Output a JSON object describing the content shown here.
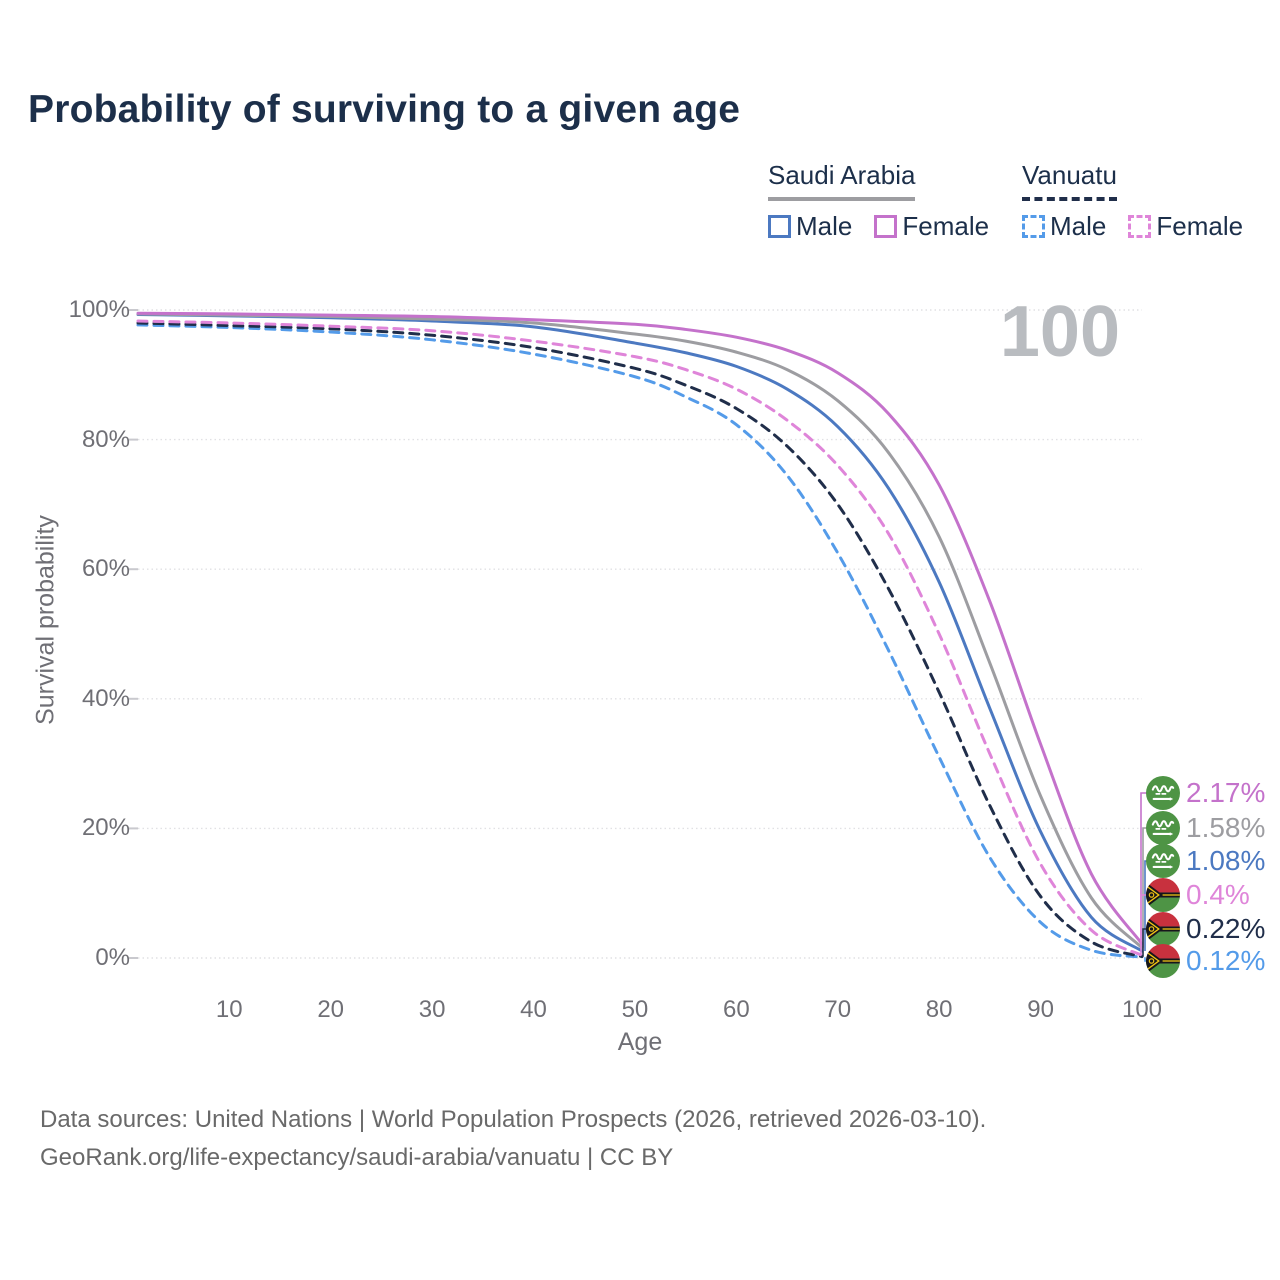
{
  "title": "Probability of surviving to a given age",
  "watermark": "100",
  "legend": {
    "groups": [
      {
        "title": "Saudi Arabia",
        "line_style": "solid",
        "line_color": "#9d9da1",
        "items": [
          {
            "label": "Male",
            "color": "#4c79c1"
          },
          {
            "label": "Female",
            "color": "#c472cb"
          }
        ]
      },
      {
        "title": "Vanuatu",
        "line_style": "dashed",
        "line_color": "#202e4a",
        "items": [
          {
            "label": "Male",
            "color": "#549be9"
          },
          {
            "label": "Female",
            "color": "#df85d9"
          }
        ]
      }
    ]
  },
  "axes": {
    "x_label": "Age",
    "y_label": "Survival probability",
    "x_tick_values": [
      10,
      20,
      30,
      40,
      50,
      60,
      70,
      80,
      90,
      100
    ],
    "x_tick_labels": [
      "10",
      "20",
      "30",
      "40",
      "50",
      "60",
      "70",
      "80",
      "90",
      "100"
    ],
    "y_tick_values": [
      0,
      20,
      40,
      60,
      80,
      100
    ],
    "y_tick_labels": [
      "0%",
      "20%",
      "40%",
      "60%",
      "80%",
      "100%"
    ]
  },
  "footer": {
    "line1": "Data sources: United Nations | World Population Prospects (2026, retrieved 2026-03-10).",
    "line2": "GeoRank.org/life-expectancy/saudi-arabia/vanuatu | CC BY"
  },
  "chart_data": {
    "type": "line",
    "title": "Probability of surviving to a given age",
    "xlabel": "Age",
    "ylabel": "Survival probability",
    "xlim": [
      1,
      100
    ],
    "ylim": [
      0,
      100
    ],
    "grid": true,
    "legend_position": "top-right",
    "x": [
      1,
      10,
      20,
      30,
      40,
      50,
      55,
      60,
      65,
      70,
      75,
      80,
      85,
      90,
      95,
      100
    ],
    "series": [
      {
        "name": "Saudi Arabia Female",
        "country": "Saudi Arabia",
        "sex": "Female",
        "color": "#c472cb",
        "line": "solid",
        "flag": "sa",
        "end_label": "2.17%",
        "end_value": 2.17,
        "values": [
          99.5,
          99.4,
          99.2,
          99.0,
          98.5,
          97.8,
          97.0,
          95.8,
          93.8,
          90.3,
          84.0,
          73.0,
          55.0,
          33.0,
          13.0,
          2.17
        ]
      },
      {
        "name": "Saudi Arabia Combined",
        "country": "Saudi Arabia",
        "sex": "Combined",
        "color": "#9d9da1",
        "line": "solid",
        "flag": "sa",
        "end_label": "1.58%",
        "end_value": 1.58,
        "values": [
          99.4,
          99.2,
          99.0,
          98.6,
          98.0,
          96.3,
          95.2,
          93.5,
          90.8,
          86.0,
          78.0,
          65.0,
          45.5,
          25.0,
          9.3,
          1.58
        ]
      },
      {
        "name": "Saudi Arabia Male",
        "country": "Saudi Arabia",
        "sex": "Male",
        "color": "#4c79c1",
        "line": "solid",
        "flag": "sa",
        "end_label": "1.08%",
        "end_value": 1.08,
        "values": [
          99.3,
          99.1,
          98.8,
          98.3,
          97.4,
          94.9,
          93.4,
          91.3,
          87.8,
          82.0,
          72.5,
          58.0,
          38.5,
          19.5,
          6.3,
          1.08
        ]
      },
      {
        "name": "Vanuatu Female",
        "country": "Vanuatu",
        "sex": "Female",
        "color": "#df85d9",
        "line": "dashed",
        "flag": "vu",
        "end_label": "0.4%",
        "end_value": 0.4,
        "values": [
          98.3,
          98.0,
          97.5,
          96.8,
          95.2,
          92.8,
          90.8,
          87.8,
          83.0,
          76.0,
          65.5,
          50.0,
          31.5,
          14.5,
          4.3,
          0.4
        ]
      },
      {
        "name": "Vanuatu Combined",
        "country": "Vanuatu",
        "sex": "Combined",
        "color": "#202e4a",
        "line": "dashed",
        "flag": "vu",
        "end_label": "0.22%",
        "end_value": 0.22,
        "values": [
          98.0,
          97.6,
          97.1,
          96.1,
          94.2,
          91.0,
          88.4,
          84.8,
          79.0,
          70.0,
          57.0,
          41.0,
          23.5,
          9.5,
          2.5,
          0.22
        ]
      },
      {
        "name": "Vanuatu Male",
        "country": "Vanuatu",
        "sex": "Male",
        "color": "#549be9",
        "line": "dashed",
        "flag": "vu",
        "end_label": "0.12%",
        "end_value": 0.12,
        "values": [
          97.7,
          97.3,
          96.6,
          95.4,
          93.2,
          89.7,
          86.6,
          82.3,
          74.5,
          62.5,
          47.5,
          31.0,
          15.5,
          5.5,
          1.2,
          0.12
        ]
      }
    ]
  }
}
